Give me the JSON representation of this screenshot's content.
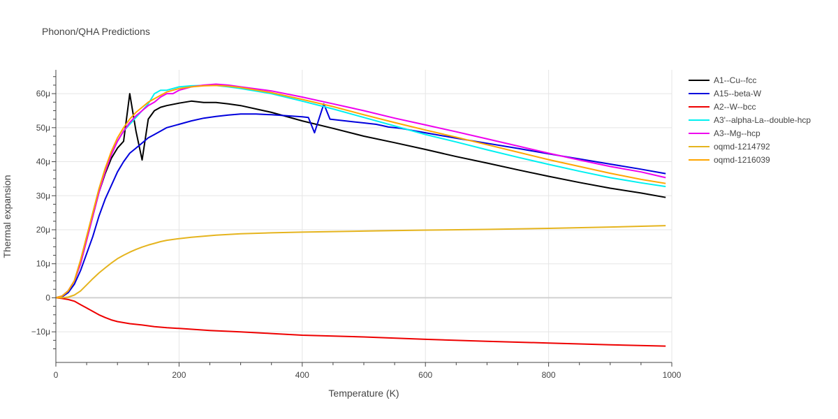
{
  "chart_data": {
    "type": "line",
    "title": "Phonon/QHA Predictions",
    "xlabel": "Temperature (K)",
    "ylabel": "Thermal expansion",
    "xlim": [
      0,
      1000
    ],
    "ylim": [
      -19,
      67
    ],
    "x_ticks": [
      0,
      200,
      400,
      600,
      800,
      1000
    ],
    "x_tick_labels": [
      "0",
      "200",
      "400",
      "600",
      "800",
      "1000"
    ],
    "y_ticks": [
      -10,
      0,
      10,
      20,
      30,
      40,
      50,
      60
    ],
    "y_tick_labels": [
      "−10μ",
      "0",
      "10μ",
      "20μ",
      "30μ",
      "40μ",
      "50μ",
      "60μ"
    ],
    "y_unit": "1e-6 per K",
    "grid": true,
    "legend_position": "top-right",
    "series": [
      {
        "name": "A1--Cu--fcc",
        "color": "#000000",
        "x": [
          0,
          10,
          20,
          30,
          40,
          50,
          60,
          70,
          80,
          90,
          100,
          110,
          120,
          130,
          140,
          150,
          160,
          170,
          180,
          200,
          220,
          240,
          260,
          280,
          300,
          350,
          400,
          450,
          500,
          550,
          600,
          650,
          700,
          750,
          800,
          850,
          900,
          950,
          990
        ],
        "y": [
          0,
          0.5,
          2,
          5,
          10,
          17,
          24,
          31,
          36.5,
          41,
          44,
          46,
          60,
          49,
          40.5,
          52.5,
          55,
          56,
          56.5,
          57.2,
          57.8,
          57.4,
          57.4,
          57,
          56.5,
          54.5,
          52,
          49.8,
          47.5,
          45.6,
          43.6,
          41.5,
          39.6,
          37.6,
          35.7,
          33.9,
          32.2,
          30.8,
          29.5
        ]
      },
      {
        "name": "A15--beta-W",
        "color": "#0000dd",
        "x": [
          0,
          10,
          20,
          30,
          40,
          50,
          60,
          70,
          80,
          90,
          100,
          110,
          120,
          130,
          140,
          150,
          160,
          170,
          180,
          200,
          220,
          240,
          260,
          280,
          300,
          325,
          350,
          375,
          400,
          410,
          420,
          435,
          445,
          460,
          480,
          500,
          520,
          530,
          540,
          560,
          600,
          650,
          700,
          750,
          800,
          850,
          900,
          950,
          990
        ],
        "y": [
          0,
          0.3,
          1.5,
          4,
          8,
          13,
          18,
          24,
          29,
          33,
          37,
          40,
          42.5,
          44,
          45.5,
          47,
          48,
          49,
          50,
          51,
          52,
          52.8,
          53.3,
          53.7,
          54,
          54,
          53.8,
          53.5,
          53.2,
          53,
          48.5,
          57,
          52.5,
          52.2,
          51.8,
          51.4,
          51,
          50.6,
          50.2,
          49.8,
          48.5,
          46.9,
          45.4,
          43.9,
          42.3,
          40.8,
          39.3,
          37.8,
          36.5
        ]
      },
      {
        "name": "A2--W--bcc",
        "color": "#ee0000",
        "x": [
          0,
          10,
          20,
          30,
          40,
          50,
          60,
          70,
          80,
          90,
          100,
          120,
          140,
          160,
          180,
          200,
          250,
          300,
          350,
          400,
          500,
          600,
          700,
          800,
          900,
          990
        ],
        "y": [
          0,
          -0.2,
          -0.5,
          -1,
          -2,
          -3,
          -4,
          -5,
          -5.8,
          -6.5,
          -7,
          -7.6,
          -8,
          -8.5,
          -8.8,
          -9,
          -9.6,
          -10,
          -10.5,
          -11,
          -11.5,
          -12.2,
          -12.8,
          -13.3,
          -13.8,
          -14.2
        ]
      },
      {
        "name": "A3'--alpha-La--double-hcp",
        "color": "#00f0f0",
        "x": [
          0,
          10,
          20,
          30,
          40,
          50,
          60,
          70,
          80,
          90,
          100,
          110,
          120,
          130,
          140,
          150,
          160,
          170,
          180,
          200,
          220,
          240,
          260,
          280,
          300,
          350,
          400,
          450,
          500,
          550,
          600,
          650,
          700,
          750,
          800,
          850,
          900,
          950,
          990
        ],
        "y": [
          0,
          0.5,
          2,
          5,
          11,
          18,
          25,
          32,
          38,
          42.5,
          46,
          49,
          51,
          53,
          55,
          57,
          60,
          61,
          61,
          62,
          62.3,
          62.4,
          62.4,
          62,
          61.5,
          60,
          57.8,
          55.5,
          53,
          50.5,
          48,
          45.8,
          43.5,
          41.3,
          39.2,
          37.2,
          35.3,
          33.8,
          32.7
        ]
      },
      {
        "name": "A3--Mg--hcp",
        "color": "#ee00ee",
        "x": [
          0,
          10,
          20,
          30,
          40,
          50,
          60,
          70,
          80,
          90,
          100,
          110,
          120,
          130,
          140,
          150,
          160,
          170,
          180,
          190,
          200,
          220,
          240,
          260,
          280,
          300,
          350,
          400,
          450,
          500,
          550,
          600,
          650,
          700,
          750,
          800,
          850,
          900,
          950,
          990
        ],
        "y": [
          0,
          0.5,
          2,
          5,
          10,
          17,
          24,
          31,
          37,
          42,
          46,
          49,
          51.5,
          53.5,
          55,
          56.5,
          57.5,
          59,
          60,
          60,
          61,
          62,
          62.5,
          62.8,
          62.5,
          62,
          60.8,
          59,
          57,
          55,
          52.8,
          50.8,
          48.8,
          46.7,
          44.6,
          42.5,
          40.5,
          38.6,
          37,
          35.3
        ]
      },
      {
        "name": "oqmd-1214792",
        "color": "#e5b41e",
        "x": [
          0,
          10,
          20,
          30,
          40,
          50,
          60,
          70,
          80,
          90,
          100,
          110,
          120,
          130,
          140,
          150,
          160,
          170,
          180,
          200,
          220,
          240,
          260,
          280,
          300,
          350,
          400,
          500,
          600,
          700,
          800,
          900,
          990
        ],
        "y": [
          0,
          0,
          0.2,
          0.8,
          2,
          3.8,
          5.6,
          7.3,
          8.8,
          10.2,
          11.5,
          12.5,
          13.4,
          14.2,
          14.9,
          15.5,
          16,
          16.5,
          16.9,
          17.4,
          17.8,
          18.1,
          18.4,
          18.6,
          18.8,
          19.1,
          19.3,
          19.6,
          19.9,
          20.1,
          20.4,
          20.8,
          21.2
        ]
      },
      {
        "name": "oqmd-1216039",
        "color": "#ffa500",
        "x": [
          0,
          10,
          20,
          30,
          40,
          50,
          60,
          70,
          80,
          90,
          100,
          110,
          120,
          130,
          140,
          150,
          160,
          170,
          180,
          190,
          200,
          220,
          240,
          260,
          280,
          300,
          350,
          400,
          450,
          500,
          550,
          600,
          650,
          700,
          750,
          800,
          850,
          900,
          950,
          990
        ],
        "y": [
          0,
          0.5,
          2,
          5,
          11,
          18,
          25,
          32,
          38,
          43,
          47,
          50,
          52.5,
          54.5,
          56,
          57.5,
          58.5,
          59.5,
          60.5,
          61,
          61.5,
          62,
          62.3,
          62.4,
          62.2,
          61.8,
          60.3,
          58.3,
          56.2,
          53.8,
          51.5,
          49.3,
          47.2,
          45,
          42.8,
          40.6,
          38.6,
          36.6,
          34.8,
          33.6
        ]
      }
    ]
  }
}
